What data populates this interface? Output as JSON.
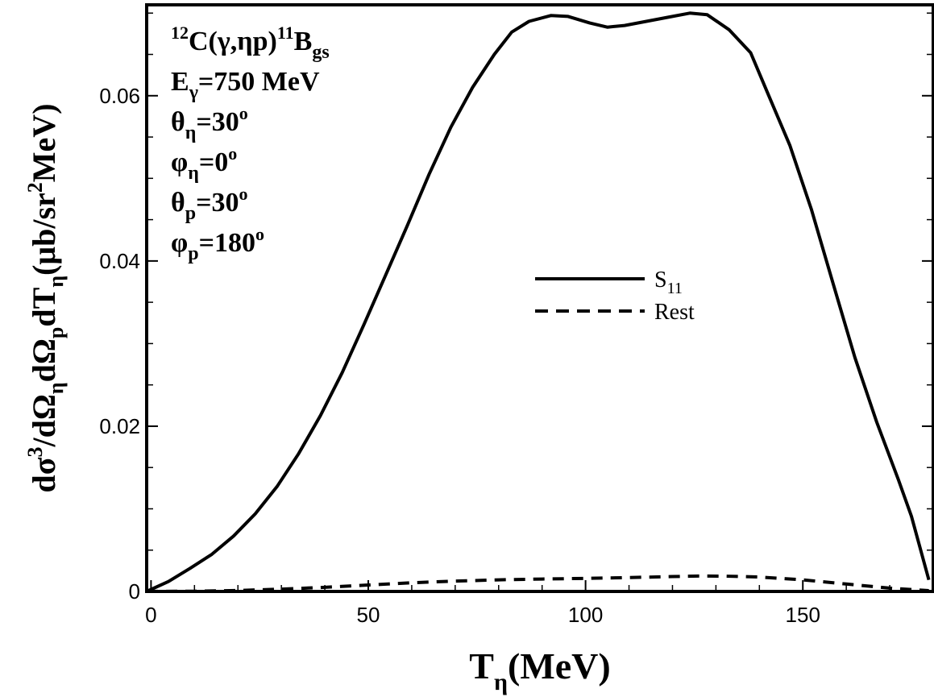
{
  "chart_data": {
    "type": "line",
    "xlabel": {
      "base": "T",
      "sub": "η",
      "rest": "(MeV)"
    },
    "ylabel": {
      "p1": "dσ",
      "sup1": "3",
      "p2": "/dΩ",
      "sub1": "η",
      "p3": "dΩ",
      "sub2": "p",
      "p4": "dT",
      "sub3": "η",
      "p5": "(μb/sr",
      "sup2": "2",
      "p6": "MeV)"
    },
    "xlim": [
      -1,
      180
    ],
    "ylim": [
      0,
      0.071
    ],
    "x_ticks": [
      0,
      50,
      100,
      150
    ],
    "x_tick_labels": [
      "0",
      "50",
      "100",
      "150"
    ],
    "y_ticks": [
      0,
      0.02,
      0.04,
      0.06
    ],
    "y_tick_labels": [
      "0",
      "0.02",
      "0.04",
      "0.06"
    ],
    "annotations": [
      {
        "parts": [
          {
            "t": "12",
            "s": "sup"
          },
          {
            "t": "C(γ,ηp)"
          },
          {
            "t": "11",
            "s": "sup"
          },
          {
            "t": "B"
          },
          {
            "t": "gs",
            "s": "sub"
          }
        ]
      },
      {
        "parts": [
          {
            "t": "E"
          },
          {
            "t": "γ",
            "s": "sub"
          },
          {
            "t": "=750 MeV"
          }
        ]
      },
      {
        "parts": [
          {
            "t": "θ"
          },
          {
            "t": "η",
            "s": "sub"
          },
          {
            "t": "=30"
          },
          {
            "t": "o",
            "s": "sup"
          }
        ]
      },
      {
        "parts": [
          {
            "t": "φ"
          },
          {
            "t": "η",
            "s": "sub"
          },
          {
            "t": "=0"
          },
          {
            "t": "o",
            "s": "sup"
          }
        ]
      },
      {
        "parts": [
          {
            "t": "θ"
          },
          {
            "t": "p",
            "s": "sub"
          },
          {
            "t": "=30"
          },
          {
            "t": "o",
            "s": "sup"
          }
        ]
      },
      {
        "parts": [
          {
            "t": "φ"
          },
          {
            "t": "p",
            "s": "sub"
          },
          {
            "t": "=180"
          },
          {
            "t": "o",
            "s": "sup"
          }
        ]
      }
    ],
    "legend_position": "center-right",
    "legend": [
      {
        "label": "S",
        "label_sub": "11",
        "style": "solid"
      },
      {
        "label": "Rest",
        "style": "dashed"
      }
    ],
    "series": [
      {
        "style": "solid",
        "x": [
          -1,
          4,
          9,
          14,
          19,
          24,
          29,
          34,
          39,
          44,
          49,
          54,
          59,
          64,
          69,
          74,
          79,
          83,
          87,
          92,
          96,
          101,
          105,
          109,
          114,
          119,
          124,
          128,
          133,
          138,
          142,
          147,
          152,
          157,
          162,
          167,
          172,
          175,
          179
        ],
        "y": [
          0,
          0.0012,
          0.0028,
          0.0045,
          0.0067,
          0.0094,
          0.0127,
          0.0167,
          0.0213,
          0.0265,
          0.0323,
          0.0383,
          0.0443,
          0.0505,
          0.0562,
          0.061,
          0.065,
          0.0677,
          0.069,
          0.0697,
          0.0696,
          0.0688,
          0.0683,
          0.0685,
          0.069,
          0.0695,
          0.07,
          0.0698,
          0.068,
          0.0652,
          0.0602,
          0.054,
          0.0462,
          0.0372,
          0.0283,
          0.0205,
          0.0135,
          0.0091,
          0.0014
        ]
      },
      {
        "style": "dashed",
        "x": [
          -1,
          10,
          20,
          30,
          40,
          50,
          60,
          70,
          80,
          90,
          100,
          110,
          120,
          126,
          132,
          140,
          150,
          160,
          170,
          179
        ],
        "y": [
          0,
          3e-05,
          0.00012,
          0.00028,
          0.0005,
          0.00078,
          0.00105,
          0.00125,
          0.0014,
          0.0015,
          0.00158,
          0.00168,
          0.0018,
          0.00186,
          0.00185,
          0.00175,
          0.0014,
          0.0009,
          0.0004,
          0.0001
        ]
      }
    ]
  }
}
